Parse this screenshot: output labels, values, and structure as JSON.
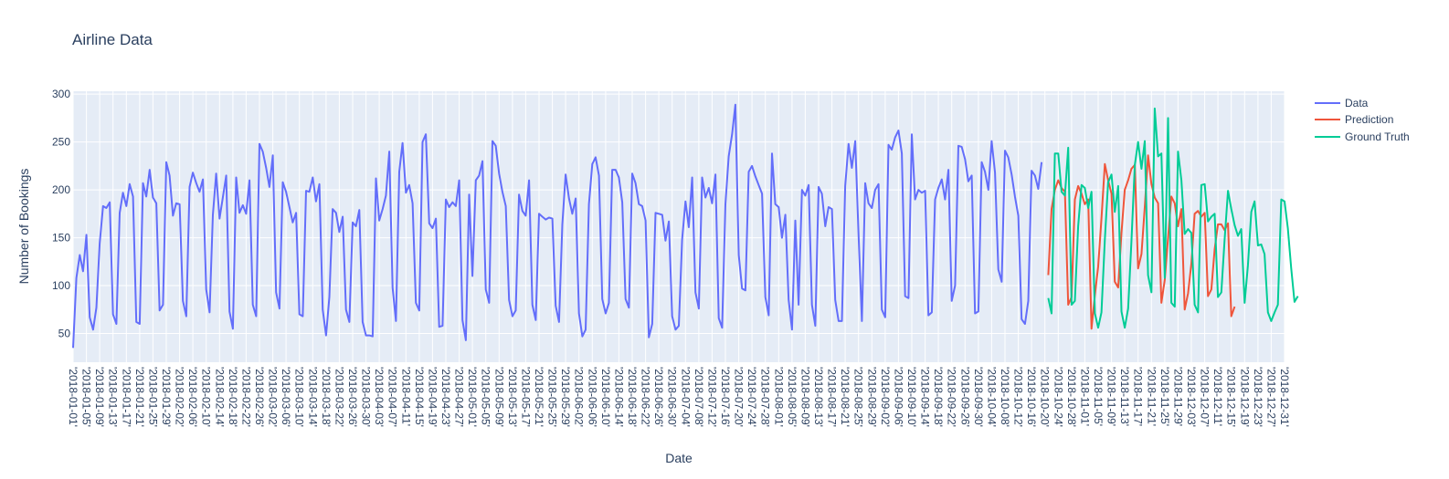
{
  "chart_data": {
    "type": "line",
    "title": "Airline Data",
    "xlabel": "Date",
    "ylabel": "Number of Bookings",
    "x_range": [
      "2018-01-01",
      "2018-12-31"
    ],
    "ylim": [
      20,
      303
    ],
    "y_ticks": [
      50,
      100,
      150,
      200,
      250,
      300
    ],
    "x_ticks": [
      "2018-01-01",
      "2018-01-05",
      "2018-01-09",
      "2018-01-13",
      "2018-01-17",
      "2018-01-21",
      "2018-01-25",
      "2018-01-29",
      "2018-02-02",
      "2018-02-06",
      "2018-02-10",
      "2018-02-14",
      "2018-02-18",
      "2018-02-22",
      "2018-02-26",
      "2018-03-02",
      "2018-03-06",
      "2018-03-10",
      "2018-03-14",
      "2018-03-18",
      "2018-03-22",
      "2018-03-26",
      "2018-03-30",
      "2018-04-03",
      "2018-04-07",
      "2018-04-11",
      "2018-04-15",
      "2018-04-19",
      "2018-04-23",
      "2018-04-27",
      "2018-05-01",
      "2018-05-05",
      "2018-05-09",
      "2018-05-13",
      "2018-05-17",
      "2018-05-21",
      "2018-05-25",
      "2018-05-29",
      "2018-06-02",
      "2018-06-06",
      "2018-06-10",
      "2018-06-14",
      "2018-06-18",
      "2018-06-22",
      "2018-06-26",
      "2018-06-30",
      "2018-07-04",
      "2018-07-08",
      "2018-07-12",
      "2018-07-16",
      "2018-07-20",
      "2018-07-24",
      "2018-07-28",
      "2018-08-01",
      "2018-08-05",
      "2018-08-09",
      "2018-08-13",
      "2018-08-17",
      "2018-08-21",
      "2018-08-25",
      "2018-08-29",
      "2018-09-02",
      "2018-09-06",
      "2018-09-10",
      "2018-09-14",
      "2018-09-18",
      "2018-09-22",
      "2018-09-26",
      "2018-09-30",
      "2018-10-04",
      "2018-10-08",
      "2018-10-12",
      "2018-10-16",
      "2018-10-20",
      "2018-10-24",
      "2018-10-28",
      "2018-11-01",
      "2018-11-05",
      "2018-11-09",
      "2018-11-13",
      "2018-11-17",
      "2018-11-21",
      "2018-11-25",
      "2018-11-29",
      "2018-12-03",
      "2018-12-07",
      "2018-12-11",
      "2018-12-15",
      "2018-12-19",
      "2018-12-23",
      "2018-12-27",
      "2018-12-31"
    ],
    "x_tick_labels": [
      "'2018-01-01'",
      "'2018-01-05'",
      "'2018-01-09'",
      "'2018-01-13'",
      "'2018-01-17'",
      "'2018-01-21'",
      "'2018-01-25'",
      "'2018-01-29'",
      "'2018-02-02'",
      "'2018-02-06'",
      "'2018-02-10'",
      "'2018-02-14'",
      "'2018-02-18'",
      "'2018-02-22'",
      "'2018-02-26'",
      "'2018-03-02'",
      "'2018-03-06'",
      "'2018-03-10'",
      "'2018-03-14'",
      "'2018-03-18'",
      "'2018-03-22'",
      "'2018-03-26'",
      "'2018-03-30'",
      "'2018-04-03'",
      "'2018-04-07'",
      "'2018-04-11'",
      "'2018-04-15'",
      "'2018-04-19'",
      "'2018-04-23'",
      "'2018-04-27'",
      "'2018-05-01'",
      "'2018-05-05'",
      "'2018-05-09'",
      "'2018-05-13'",
      "'2018-05-17'",
      "'2018-05-21'",
      "'2018-05-25'",
      "'2018-05-29'",
      "'2018-06-02'",
      "'2018-06-06'",
      "'2018-06-10'",
      "'2018-06-14'",
      "'2018-06-18'",
      "'2018-06-22'",
      "'2018-06-26'",
      "'2018-06-30'",
      "'2018-07-04'",
      "'2018-07-08'",
      "'2018-07-12'",
      "'2018-07-16'",
      "'2018-07-20'",
      "'2018-07-24'",
      "'2018-07-28'",
      "'2018-08-01'",
      "'2018-08-05'",
      "'2018-08-09'",
      "'2018-08-13'",
      "'2018-08-17'",
      "'2018-08-21'",
      "'2018-08-25'",
      "'2018-08-29'",
      "'2018-09-02'",
      "'2018-09-06'",
      "'2018-09-10'",
      "'2018-09-14'",
      "'2018-09-18'",
      "'2018-09-22'",
      "'2018-09-26'",
      "'2018-09-30'",
      "'2018-10-04'",
      "'2018-10-08'",
      "'2018-10-12'",
      "'2018-10-16'",
      "'2018-10-20'",
      "'2018-10-24'",
      "'2018-10-28'",
      "'2018-11-01'",
      "'2018-11-05'",
      "'2018-11-09'",
      "'2018-11-13'",
      "'2018-11-17'",
      "'2018-11-21'",
      "'2018-11-25'",
      "'2018-11-29'",
      "'2018-12-03'",
      "'2018-12-07'",
      "'2018-12-11'",
      "'2018-12-15'",
      "'2018-12-19'",
      "'2018-12-23'",
      "'2018-12-27'",
      "'2018-12-31'"
    ],
    "grid": true,
    "legend_position": "top-right",
    "series": [
      {
        "name": "Data",
        "color": "#636efa",
        "x_start": "2018-01-01",
        "x_step_days": 1,
        "values": [
          35,
          108,
          132,
          115,
          153,
          67,
          54,
          77,
          144,
          183,
          181,
          187,
          70,
          60,
          176,
          197,
          183,
          206,
          193,
          62,
          60,
          207,
          193,
          221,
          192,
          186,
          74,
          80,
          229,
          215,
          173,
          186,
          185,
          84,
          68,
          203,
          218,
          207,
          198,
          211,
          96,
          72,
          174,
          217,
          170,
          192,
          215,
          73,
          55,
          213,
          176,
          184,
          175,
          210,
          80,
          68,
          248,
          240,
          223,
          203,
          236,
          93,
          76,
          208,
          198,
          182,
          166,
          176,
          70,
          68,
          199,
          198,
          213,
          188,
          206,
          75,
          48,
          88,
          180,
          176,
          156,
          172,
          75,
          62,
          166,
          162,
          179,
          62,
          48,
          48,
          47,
          212,
          168,
          180,
          194,
          240,
          98,
          63,
          219,
          249,
          197,
          205,
          186,
          82,
          74,
          250,
          258,
          165,
          160,
          170,
          57,
          58,
          190,
          182,
          187,
          183,
          210,
          64,
          43,
          195,
          110,
          210,
          215,
          230,
          96,
          82,
          251,
          246,
          217,
          198,
          183,
          85,
          68,
          74,
          195,
          178,
          173,
          210,
          80,
          64,
          175,
          172,
          169,
          171,
          170,
          79,
          62,
          164,
          216,
          191,
          175,
          191,
          71,
          47,
          54,
          185,
          227,
          234,
          215,
          86,
          71,
          82,
          221,
          221,
          213,
          187,
          86,
          77,
          217,
          207,
          185,
          183,
          168,
          46,
          60,
          176,
          175,
          174,
          147,
          167,
          68,
          54,
          58,
          148,
          188,
          161,
          213,
          93,
          76,
          213,
          192,
          202,
          186,
          216,
          66,
          56,
          185,
          235,
          258,
          289,
          132,
          97,
          95,
          219,
          225,
          214,
          205,
          196,
          88,
          69,
          238,
          185,
          182,
          150,
          174,
          85,
          54,
          168,
          80,
          200,
          194,
          205,
          80,
          58,
          203,
          196,
          162,
          182,
          180,
          85,
          63,
          63,
          204,
          248,
          223,
          251,
          154,
          63,
          207,
          186,
          181,
          200,
          206,
          75,
          67,
          247,
          242,
          255,
          262,
          238,
          89,
          87,
          258,
          190,
          200,
          197,
          199,
          69,
          72,
          190,
          202,
          211,
          190,
          221,
          84,
          100,
          246,
          245,
          232,
          209,
          215,
          71,
          73,
          229,
          219,
          200,
          251,
          218,
          117,
          104,
          241,
          234,
          216,
          193,
          173,
          65,
          60,
          84,
          220,
          215,
          201,
          229
        ]
      },
      {
        "name": "Prediction",
        "color": "#ef553b",
        "x_start": "2018-10-21",
        "x_step_days": 1,
        "values": [
          111,
          180,
          200,
          210,
          202,
          198,
          80,
          88,
          190,
          204,
          196,
          185,
          190,
          55,
          90,
          120,
          170,
          227,
          210,
          196,
          104,
          98,
          155,
          200,
          210,
          222,
          226,
          118,
          133,
          182,
          236,
          206,
          192,
          186,
          82,
          106,
          150,
          193,
          186,
          162,
          180,
          75,
          92,
          123,
          175,
          178,
          172,
          176,
          89,
          96,
          138,
          164,
          164,
          158,
          165,
          68,
          78
        ]
      },
      {
        "name": "Ground Truth",
        "color": "#00cc96",
        "x_start": "2018-10-21",
        "x_step_days": 1,
        "values": [
          87,
          71,
          238,
          238,
          198,
          194,
          244,
          80,
          84,
          162,
          205,
          202,
          181,
          198,
          71,
          56,
          72,
          148,
          208,
          216,
          177,
          204,
          73,
          56,
          76,
          146,
          226,
          250,
          222,
          251,
          111,
          93,
          285,
          235,
          238,
          108,
          275,
          82,
          78,
          240,
          210,
          154,
          159,
          155,
          80,
          72,
          205,
          206,
          167,
          172,
          175,
          88,
          93,
          148,
          199,
          180,
          163,
          152,
          159,
          82,
          121,
          177,
          188,
          142,
          143,
          133,
          72,
          63,
          72,
          80,
          190,
          188,
          160,
          118,
          83,
          89
        ]
      }
    ]
  }
}
